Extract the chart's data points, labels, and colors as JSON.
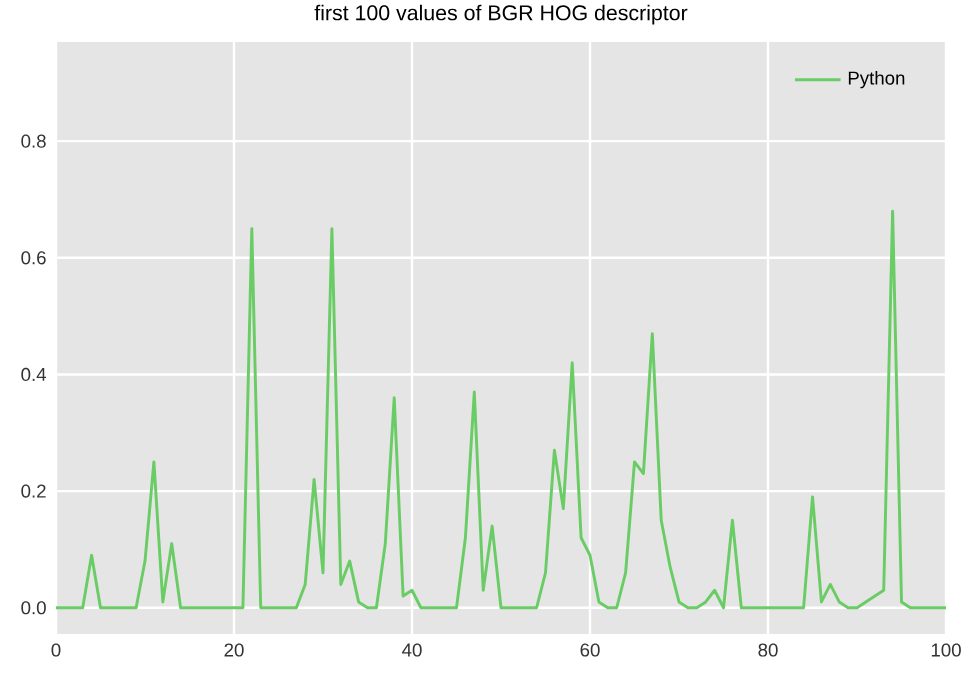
{
  "chart_data": {
    "type": "line",
    "title": "first 100 values of BGR HOG descriptor",
    "x": [
      0,
      1,
      2,
      3,
      4,
      5,
      6,
      7,
      8,
      9,
      10,
      11,
      12,
      13,
      14,
      15,
      16,
      17,
      18,
      19,
      20,
      21,
      22,
      23,
      24,
      25,
      26,
      27,
      28,
      29,
      30,
      31,
      32,
      33,
      34,
      35,
      36,
      37,
      38,
      39,
      40,
      41,
      42,
      43,
      44,
      45,
      46,
      47,
      48,
      49,
      50,
      51,
      52,
      53,
      54,
      55,
      56,
      57,
      58,
      59,
      60,
      61,
      62,
      63,
      64,
      65,
      66,
      67,
      68,
      69,
      70,
      71,
      72,
      73,
      74,
      75,
      76,
      77,
      78,
      79,
      80,
      81,
      82,
      83,
      84,
      85,
      86,
      87,
      88,
      89,
      90,
      91,
      92,
      93,
      94,
      95,
      96,
      97,
      98,
      99,
      100
    ],
    "series": [
      {
        "name": "Python",
        "color": "#6acc65",
        "values": [
          0,
          0,
          0,
          0,
          0.09,
          0,
          0,
          0,
          0,
          0,
          0.08,
          0.25,
          0.01,
          0.11,
          0,
          0,
          0,
          0,
          0,
          0,
          0,
          0,
          0.65,
          0,
          0,
          0,
          0,
          0,
          0.04,
          0.22,
          0.06,
          0.65,
          0.04,
          0.08,
          0.01,
          0,
          0,
          0.11,
          0.36,
          0.02,
          0.03,
          0,
          0,
          0,
          0,
          0,
          0.12,
          0.37,
          0.03,
          0.14,
          0,
          0,
          0,
          0,
          0,
          0.06,
          0.27,
          0.17,
          0.42,
          0.12,
          0.09,
          0.01,
          0,
          0,
          0.06,
          0.25,
          0.23,
          0.47,
          0.15,
          0.07,
          0.01,
          0,
          0,
          0.01,
          0.03,
          0,
          0.15,
          0,
          0,
          0,
          0,
          0,
          0,
          0,
          0,
          0.19,
          0.01,
          0.04,
          0.01,
          0,
          0,
          0.01,
          0.02,
          0.03,
          0.68,
          0.01,
          0,
          0,
          0,
          0,
          0
        ]
      }
    ],
    "xlim": [
      0,
      100
    ],
    "xticks": [
      0,
      20,
      40,
      60,
      80,
      100
    ],
    "ylim": [
      -0.045,
      0.97
    ],
    "yticks": [
      {
        "value": 0,
        "label": "0.0"
      },
      0.2,
      0.4,
      0.6,
      0.8
    ],
    "grid": true,
    "legend": "top right",
    "line_style": "solid",
    "marker": "none"
  }
}
